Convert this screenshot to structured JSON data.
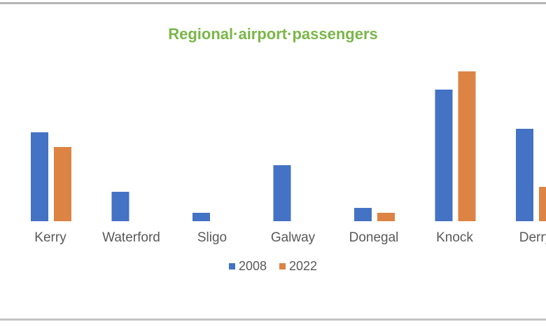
{
  "chart_data": {
    "type": "bar",
    "title": "Regional·airport·passengers",
    "xlabel": "",
    "ylabel": "",
    "categories": [
      "Kerry",
      "Waterford",
      "Sligo",
      "Galway",
      "Donegal",
      "Knock",
      "Derry"
    ],
    "series": [
      {
        "name": "2008",
        "color": "#4472c4",
        "values": [
          127,
          42,
          12,
          80,
          19,
          188,
          132
        ]
      },
      {
        "name": "2022",
        "color": "#dd8344",
        "values": [
          106,
          0,
          0,
          0,
          12,
          214,
          49
        ]
      }
    ],
    "ylim": [
      0,
      230
    ],
    "grid": false,
    "legend": "bottom-center",
    "note": "relative units; no y-axis values shown"
  }
}
